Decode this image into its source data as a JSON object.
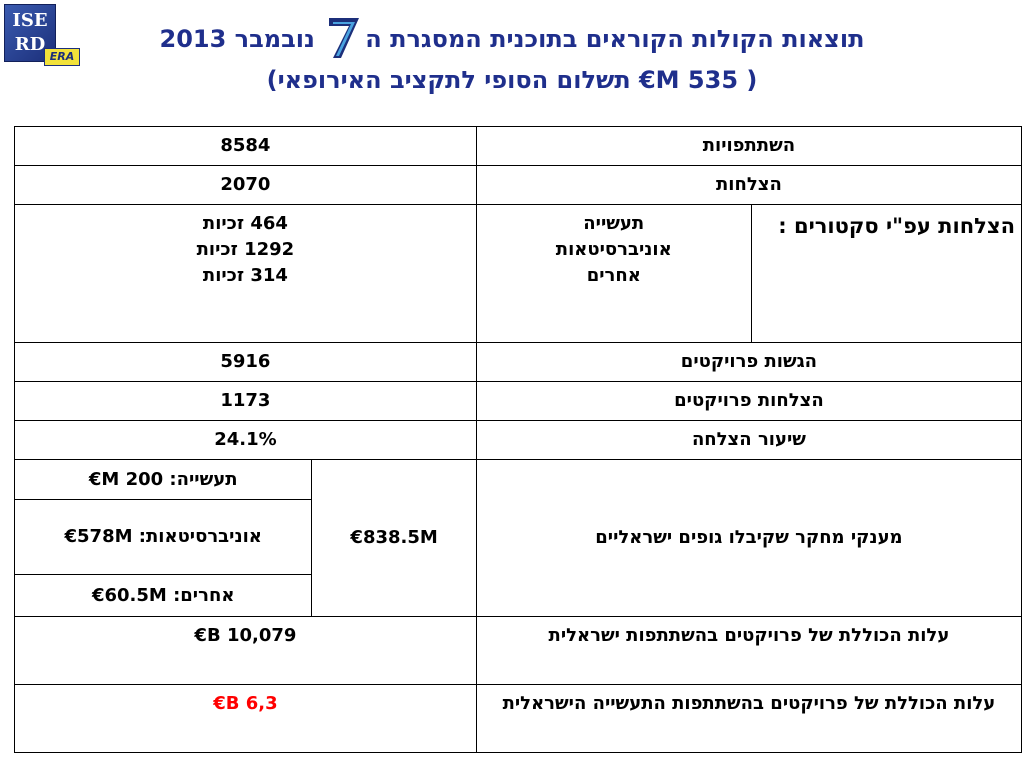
{
  "logo": {
    "line1": "ISE",
    "line2": "RD",
    "badge": "ERA"
  },
  "title": {
    "line1_part1": "תוצאות הקולות הקוראים  בתוכנית המסגרת ה",
    "line1_seven": "7",
    "line1_part2": " נובמבר 2013",
    "line2": "( 535 M€ תשלום הסופי  לתקציב האירופאי)"
  },
  "rows": {
    "participations": {
      "label": "השתתפויות",
      "value": "8584"
    },
    "successes": {
      "label": "הצלחות",
      "value": "2070"
    },
    "sectors": {
      "label": "הצלחות עפ\"י סקטורים :",
      "names": [
        "תעשייה",
        "אוניברסיטאות",
        "אחרים"
      ],
      "values": [
        "464 זכיות",
        "1292 זכיות",
        "314  זכיות"
      ]
    },
    "submissions": {
      "label": "הגשות פרויקטים",
      "value": "5916"
    },
    "project_successes": {
      "label": "הצלחות פרויקטים",
      "value": "1173"
    },
    "success_rate": {
      "label": "שיעור הצלחה",
      "value": "24.1%"
    },
    "grants": {
      "label": "מענקי מחקר שקיבלו גופים ישראליים",
      "total": "838.5M€",
      "breakdown": [
        "תעשייה: 200 M€",
        "אוניברסיטאות: 578M€",
        "אחרים:  60.5M€"
      ]
    },
    "total_cost": {
      "label": "עלות הכוללת של פרויקטים  בהשתתפות ישראלית",
      "value": "10,079 B€"
    },
    "industry_cost": {
      "label": "עלות הכוללת של פרויקטים בהשתתפות התעשייה הישראלית",
      "value": "6,3 B€"
    }
  },
  "colors": {
    "title": "#1f2f8c",
    "highlight": "#ff0000",
    "seven_dark": "#1c2f7a",
    "seven_light": "#4aa3e0"
  }
}
